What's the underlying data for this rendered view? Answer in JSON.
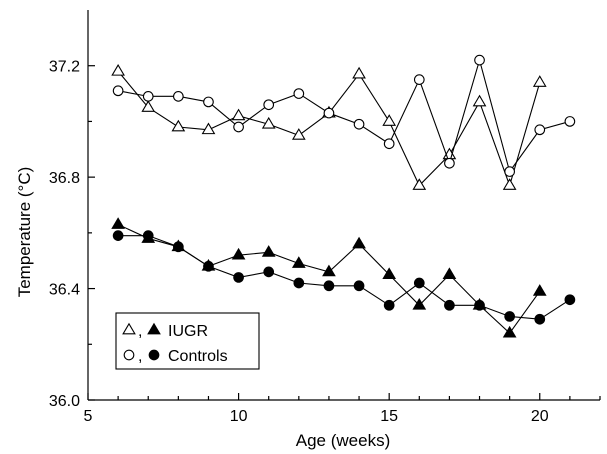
{
  "chart_data": {
    "type": "line",
    "xlabel": "Age (weeks)",
    "ylabel": "Temperature (°C)",
    "xlim": [
      5,
      22
    ],
    "ylim": [
      36.0,
      37.4
    ],
    "xticks": [
      5,
      10,
      15,
      20
    ],
    "xtick_labels": [
      "5",
      "10",
      "15",
      "20"
    ],
    "yticks": [
      36.0,
      36.4,
      36.8,
      37.2
    ],
    "ytick_labels": [
      "36.0",
      "36.4",
      "36.8",
      "37.2"
    ],
    "grid": false,
    "legend": {
      "placement": "bottom-left",
      "entries": [
        {
          "symbols": [
            "open-triangle",
            "filled-triangle"
          ],
          "separator": ",",
          "label": "IUGR"
        },
        {
          "symbols": [
            "open-circle",
            "filled-circle"
          ],
          "separator": ",",
          "label": "Controls"
        }
      ]
    },
    "series": [
      {
        "marker": "open-triangle",
        "x": [
          6,
          7,
          8,
          9,
          10,
          11,
          12,
          13,
          14,
          15,
          16,
          17,
          18,
          19,
          20
        ],
        "y": [
          37.18,
          37.05,
          36.98,
          36.97,
          37.02,
          36.99,
          36.95,
          37.03,
          37.17,
          37.0,
          36.77,
          36.88,
          37.07,
          36.77,
          37.14
        ]
      },
      {
        "marker": "open-circle",
        "x": [
          6,
          7,
          8,
          9,
          10,
          11,
          12,
          13,
          14,
          15,
          16,
          17,
          18,
          19,
          20,
          21
        ],
        "y": [
          37.11,
          37.09,
          37.09,
          37.07,
          36.98,
          37.06,
          37.1,
          37.03,
          36.99,
          36.92,
          37.15,
          36.85,
          37.22,
          36.82,
          36.97,
          37.0
        ]
      },
      {
        "marker": "filled-triangle",
        "x": [
          6,
          7,
          8,
          9,
          10,
          11,
          12,
          13,
          14,
          15,
          16,
          17,
          18,
          19,
          20
        ],
        "y": [
          36.63,
          36.58,
          36.55,
          36.48,
          36.52,
          36.53,
          36.49,
          36.46,
          36.56,
          36.45,
          36.34,
          36.45,
          36.34,
          36.24,
          36.39
        ]
      },
      {
        "marker": "filled-circle",
        "x": [
          6,
          7,
          8,
          9,
          10,
          11,
          12,
          13,
          14,
          15,
          16,
          17,
          18,
          19,
          20,
          21
        ],
        "y": [
          36.59,
          36.59,
          36.55,
          36.48,
          36.44,
          36.46,
          36.42,
          36.41,
          36.41,
          36.34,
          36.42,
          36.34,
          36.34,
          36.3,
          36.29,
          36.36
        ]
      }
    ]
  }
}
